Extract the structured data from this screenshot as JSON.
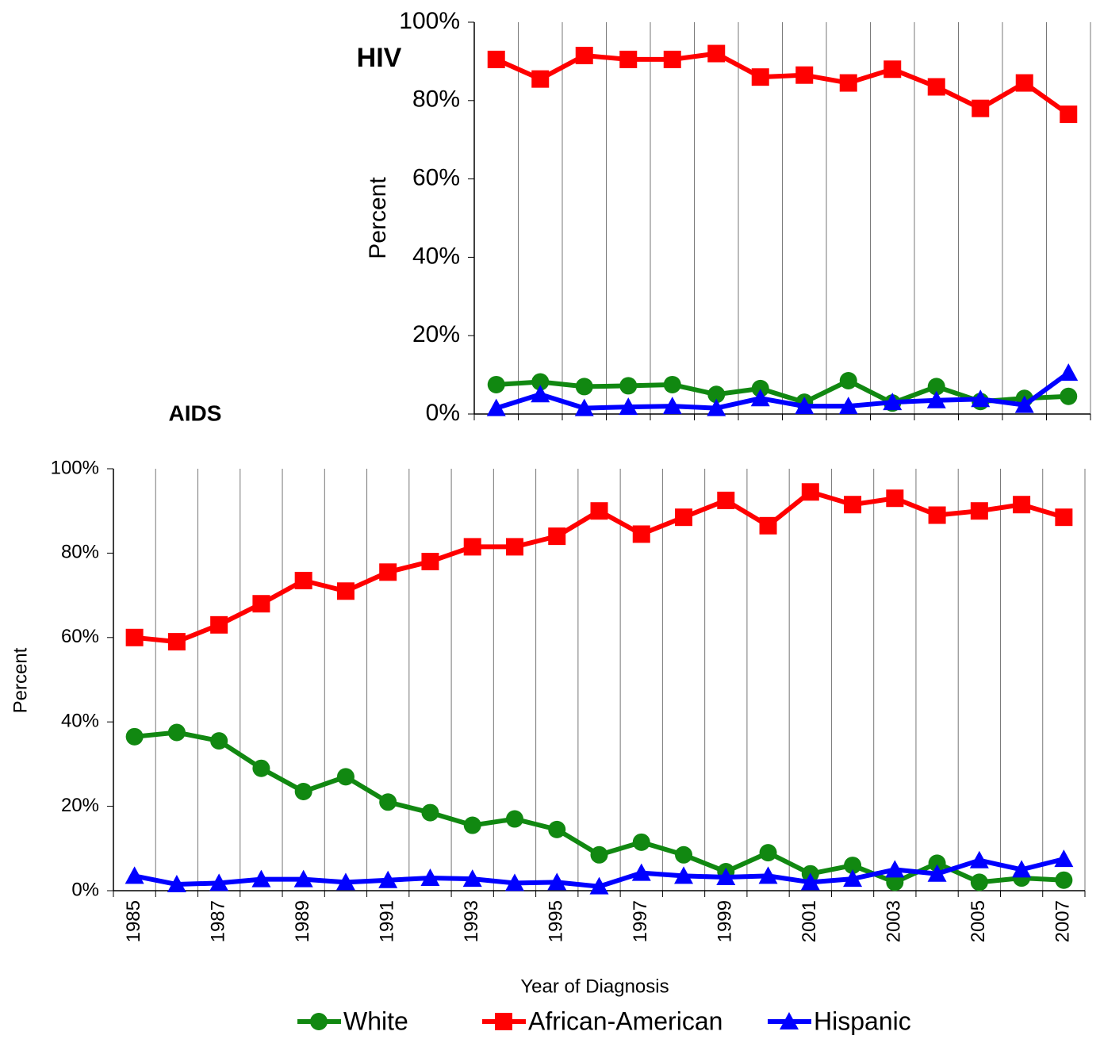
{
  "chart_data": [
    {
      "type": "line",
      "title": "HIV",
      "y_label": "Percent",
      "categories": [
        null,
        null,
        null,
        null,
        null,
        null,
        null,
        null,
        null,
        null,
        null,
        null,
        null,
        null
      ],
      "ylim": [
        0,
        100
      ],
      "yticks": [
        {
          "value": 0,
          "label": "0%"
        },
        {
          "value": 20,
          "label": "20%"
        },
        {
          "value": 40,
          "label": "40%"
        },
        {
          "value": 60,
          "label": "60%"
        },
        {
          "value": 80,
          "label": "80%"
        },
        {
          "value": 100,
          "label": "100%"
        }
      ],
      "grid": true,
      "series": [
        {
          "color": "#118811",
          "marker": "circle",
          "values": [
            7.5,
            8.2,
            7,
            7.2,
            7.5,
            5,
            6.5,
            3,
            8.5,
            2.8,
            7,
            3.2,
            4,
            4.5
          ]
        },
        {
          "color": "#ff0000",
          "marker": "square",
          "values": [
            90.5,
            85.5,
            91.5,
            90.5,
            90.5,
            92,
            86,
            86.5,
            84.5,
            88,
            83.5,
            78,
            84.5,
            76.5
          ]
        },
        {
          "color": "#0000ff",
          "marker": "triangle",
          "values": [
            1.5,
            5,
            1.5,
            1.8,
            2,
            1.5,
            4,
            2,
            2,
            3,
            3.5,
            3.8,
            2.3,
            10.5
          ]
        }
      ]
    },
    {
      "type": "line",
      "title": "AIDS",
      "y_label": "Percent",
      "x_label": "Year of Diagnosis",
      "categories": [
        "1985",
        null,
        "1987",
        null,
        "1989",
        null,
        "1991",
        null,
        "1993",
        null,
        "1995",
        null,
        "1997",
        null,
        "1999",
        null,
        "2001",
        null,
        "2003",
        null,
        "2005",
        null,
        "2007"
      ],
      "ylim": [
        0,
        100
      ],
      "yticks": [
        {
          "value": 0,
          "label": "0%"
        },
        {
          "value": 20,
          "label": "20%"
        },
        {
          "value": 40,
          "label": "40%"
        },
        {
          "value": 60,
          "label": "60%"
        },
        {
          "value": 80,
          "label": "80%"
        },
        {
          "value": 100,
          "label": "100%"
        }
      ],
      "grid": true,
      "legend": "bottom",
      "series": [
        {
          "name": "White",
          "color": "#118811",
          "marker": "circle",
          "values": [
            36.5,
            37.5,
            35.5,
            29,
            23.5,
            27,
            21,
            18.5,
            15.5,
            17,
            14.5,
            8.5,
            11.5,
            8.5,
            4.5,
            9,
            4,
            6,
            2,
            6.5,
            2,
            3,
            2.5
          ]
        },
        {
          "name": "African-American",
          "color": "#ff0000",
          "marker": "square",
          "values": [
            60,
            59,
            63,
            68,
            73.5,
            71,
            75.5,
            78,
            81.5,
            81.5,
            84,
            90,
            84.5,
            88.5,
            92.5,
            86.5,
            94.5,
            91.5,
            93,
            89,
            90,
            91.5,
            88.5
          ]
        },
        {
          "name": "Hispanic",
          "color": "#0000ff",
          "marker": "triangle",
          "values": [
            3.5,
            1.5,
            1.8,
            2.7,
            2.7,
            2,
            2.5,
            3,
            2.8,
            1.8,
            2,
            1,
            4.2,
            3.5,
            3.2,
            3.5,
            2,
            2.8,
            5,
            4,
            7.2,
            5,
            7.5
          ]
        }
      ]
    }
  ]
}
